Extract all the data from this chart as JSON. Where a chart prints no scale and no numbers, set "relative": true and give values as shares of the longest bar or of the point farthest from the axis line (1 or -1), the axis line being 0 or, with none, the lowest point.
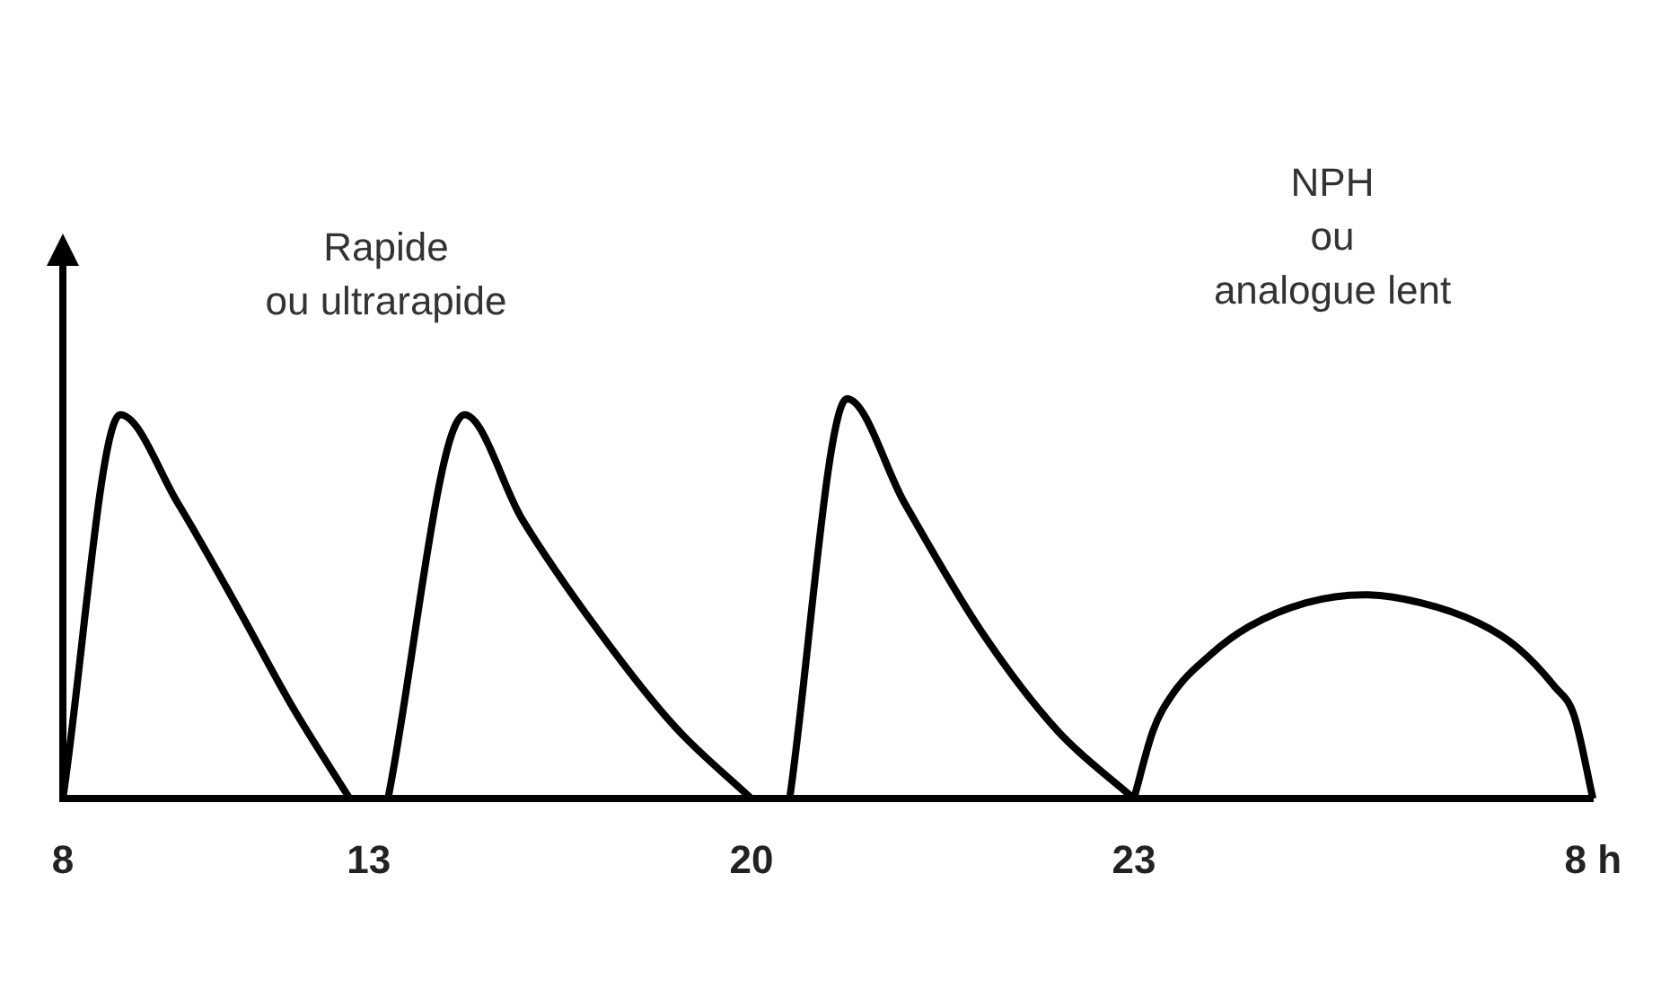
{
  "chart_data": {
    "type": "line",
    "relative": true,
    "marker": "none",
    "annotations": [
      "Rapide\nou ultrarapide",
      "NPH\nou\nanalogue lent"
    ],
    "categories": [
      "8",
      null,
      null,
      null,
      null,
      null,
      null,
      null,
      null,
      null,
      null,
      null,
      null,
      null,
      null,
      null,
      "13",
      null,
      null,
      null,
      null,
      null,
      null,
      null,
      null,
      null,
      null,
      null,
      null,
      null,
      null,
      null,
      null,
      null,
      null,
      null,
      "20",
      null,
      null,
      null,
      null,
      null,
      null,
      null,
      null,
      null,
      null,
      null,
      null,
      null,
      null,
      null,
      null,
      null,
      null,
      null,
      "23",
      null,
      null,
      null,
      null,
      null,
      null,
      null,
      null,
      null,
      null,
      null,
      null,
      null,
      null,
      null,
      null,
      null,
      null,
      null,
      null,
      null,
      null,
      null,
      "8 h"
    ],
    "series": [
      {
        "color": "#000000",
        "values": [
          0,
          null,
          null,
          0.96,
          null,
          null,
          0.74,
          null,
          null,
          0.49,
          null,
          null,
          0.23,
          null,
          null,
          0,
          null,
          null,
          null,
          null,
          null,
          null,
          null,
          null,
          null,
          null,
          null,
          null,
          null,
          null,
          null,
          null,
          null,
          null,
          null,
          null,
          null,
          null,
          null,
          null,
          null,
          null,
          null,
          null,
          null,
          null,
          null,
          null,
          null,
          null,
          null,
          null,
          null,
          null,
          null,
          null,
          null,
          null,
          null,
          null,
          null,
          null,
          null,
          null,
          null,
          null,
          null,
          null,
          null,
          null,
          null,
          null,
          null,
          null,
          null,
          null,
          null,
          null,
          null,
          null,
          null
        ]
      },
      {
        "color": "#000000",
        "values": [
          null,
          null,
          null,
          null,
          null,
          null,
          null,
          null,
          null,
          null,
          null,
          null,
          null,
          null,
          null,
          null,
          null,
          0,
          null,
          null,
          null,
          0.96,
          null,
          null,
          0.7,
          null,
          null,
          null,
          0.42,
          null,
          null,
          null,
          0.18,
          null,
          null,
          null,
          0,
          null,
          null,
          null,
          null,
          null,
          null,
          null,
          null,
          null,
          null,
          null,
          null,
          null,
          null,
          null,
          null,
          null,
          null,
          null,
          null,
          null,
          null,
          null,
          null,
          null,
          null,
          null,
          null,
          null,
          null,
          null,
          null,
          null,
          null,
          null,
          null,
          null,
          null,
          null,
          null,
          null,
          null,
          null,
          null
        ]
      },
      {
        "color": "#000000",
        "values": [
          null,
          null,
          null,
          null,
          null,
          null,
          null,
          null,
          null,
          null,
          null,
          null,
          null,
          null,
          null,
          null,
          null,
          null,
          null,
          null,
          null,
          null,
          null,
          null,
          null,
          null,
          null,
          null,
          null,
          null,
          null,
          null,
          null,
          null,
          null,
          null,
          null,
          null,
          0,
          null,
          null,
          1,
          null,
          null,
          0.74,
          null,
          null,
          null,
          0.42,
          null,
          null,
          null,
          0.17,
          null,
          null,
          null,
          0,
          null,
          null,
          null,
          null,
          null,
          null,
          null,
          null,
          null,
          null,
          null,
          null,
          null,
          null,
          null,
          null,
          null,
          null,
          null,
          null,
          null,
          null,
          null,
          null
        ]
      },
      {
        "color": "#000000",
        "values": [
          null,
          null,
          null,
          null,
          null,
          null,
          null,
          null,
          null,
          null,
          null,
          null,
          null,
          null,
          null,
          null,
          null,
          null,
          null,
          null,
          null,
          null,
          null,
          null,
          null,
          null,
          null,
          null,
          null,
          null,
          null,
          null,
          null,
          null,
          null,
          null,
          null,
          null,
          null,
          null,
          null,
          null,
          null,
          null,
          null,
          null,
          null,
          null,
          null,
          null,
          null,
          null,
          null,
          null,
          null,
          null,
          0,
          0.17,
          0.26,
          null,
          0.36,
          null,
          0.43,
          null,
          null,
          0.49,
          null,
          null,
          0.51,
          null,
          null,
          0.49,
          null,
          null,
          0.44,
          null,
          0.38,
          null,
          0.28,
          0.21,
          0
        ]
      }
    ]
  }
}
